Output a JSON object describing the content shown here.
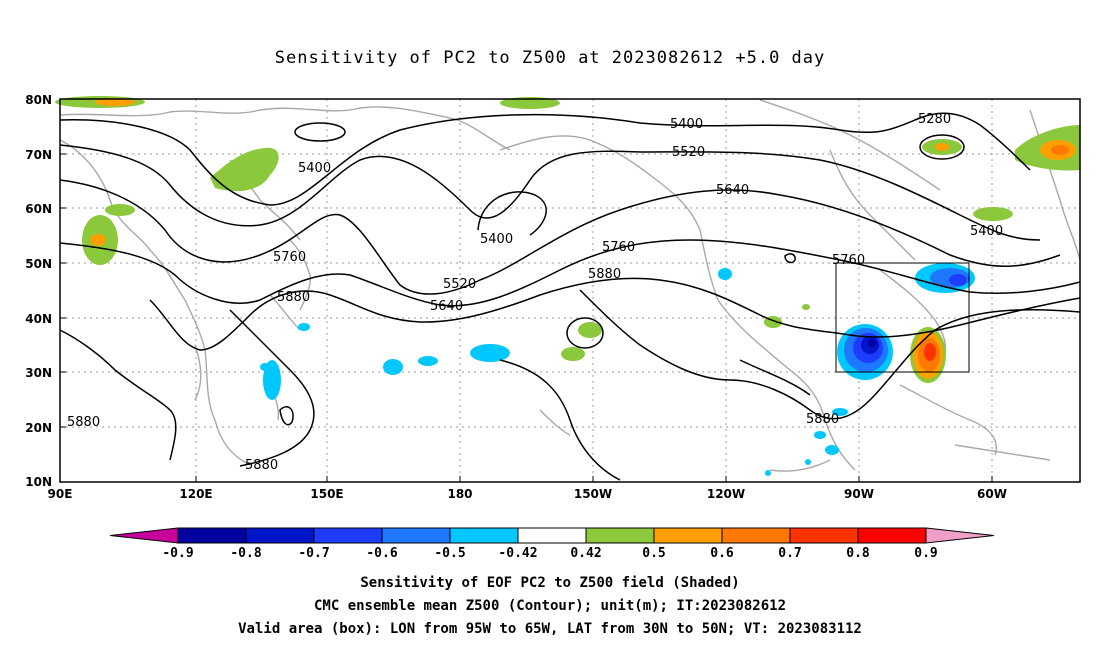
{
  "title": "Sensitivity of PC2 to Z500 at 2023082612 +5.0 day",
  "map": {
    "lat_labels": [
      "80N",
      "70N",
      "60N",
      "50N",
      "40N",
      "30N",
      "20N",
      "10N"
    ],
    "lon_labels": [
      "90E",
      "120E",
      "150E",
      "180",
      "150W",
      "120W",
      "90W",
      "60W"
    ],
    "contour_labels": [
      "5400",
      "5400",
      "5400",
      "5280",
      "5520",
      "5640",
      "5760",
      "5760",
      "5760",
      "5880",
      "5880",
      "5880",
      "5520",
      "5640",
      "5400",
      "5880",
      "5880"
    ],
    "box": {
      "lon_from": "95W",
      "lon_to": "65W",
      "lat_from": "30N",
      "lat_to": "50N"
    }
  },
  "colorbar": {
    "labels": [
      "-0.9",
      "-0.8",
      "-0.7",
      "-0.6",
      "-0.5",
      "-0.42",
      "0.42",
      "0.5",
      "0.6",
      "0.7",
      "0.8",
      "0.9"
    ],
    "colors": [
      "#c8009c",
      "#0000a0",
      "#0014c8",
      "#1e3cff",
      "#1e78ff",
      "#00c8ff",
      "#ffffff",
      "#8cc83c",
      "#ffa000",
      "#ff7800",
      "#ff3200",
      "#ff0000",
      "#f0a0c8"
    ]
  },
  "caption": {
    "line1": "Sensitivity of EOF PC2 to Z500 field (Shaded)",
    "line2": "CMC ensemble mean Z500 (Contour); unit(m); IT:2023082612",
    "line3": "Valid area (box): LON from 95W to 65W, LAT from 30N to 50N; VT: 2023083112"
  }
}
